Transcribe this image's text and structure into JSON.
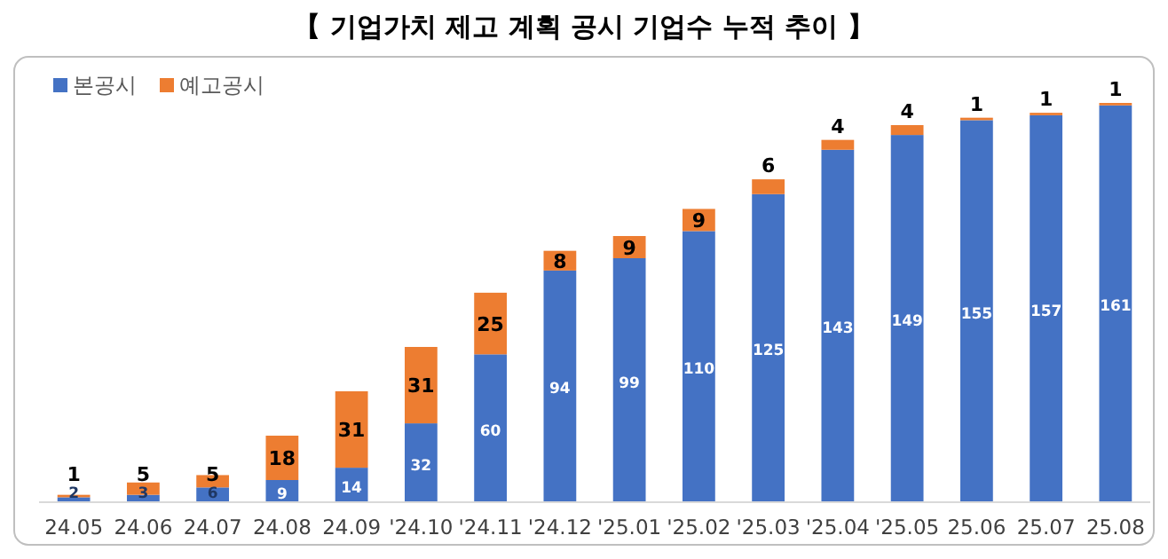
{
  "chart_data": {
    "type": "bar",
    "title": "【 기업가치 제고 계획 공시 기업수 누적 추이 】",
    "stacked": true,
    "data_labels": true,
    "legend": "top left",
    "categories": [
      "24.05",
      "24.06",
      "24.07",
      "24.08",
      "24.09",
      "'24.10",
      "'24.11",
      "'24.12",
      "'25.01",
      "'25.02",
      "'25.03",
      "'25.04",
      "'25.05",
      "25.06",
      "25.07",
      "25.08"
    ],
    "series": [
      {
        "name": "본공시",
        "color": "#4472c4",
        "values": [
          2,
          3,
          6,
          9,
          14,
          32,
          60,
          94,
          99,
          110,
          125,
          143,
          149,
          155,
          157,
          161
        ]
      },
      {
        "name": "예고공시",
        "color": "#ed7d31",
        "values": [
          1,
          5,
          5,
          18,
          31,
          31,
          25,
          8,
          9,
          9,
          6,
          4,
          4,
          1,
          1,
          1
        ]
      }
    ]
  }
}
